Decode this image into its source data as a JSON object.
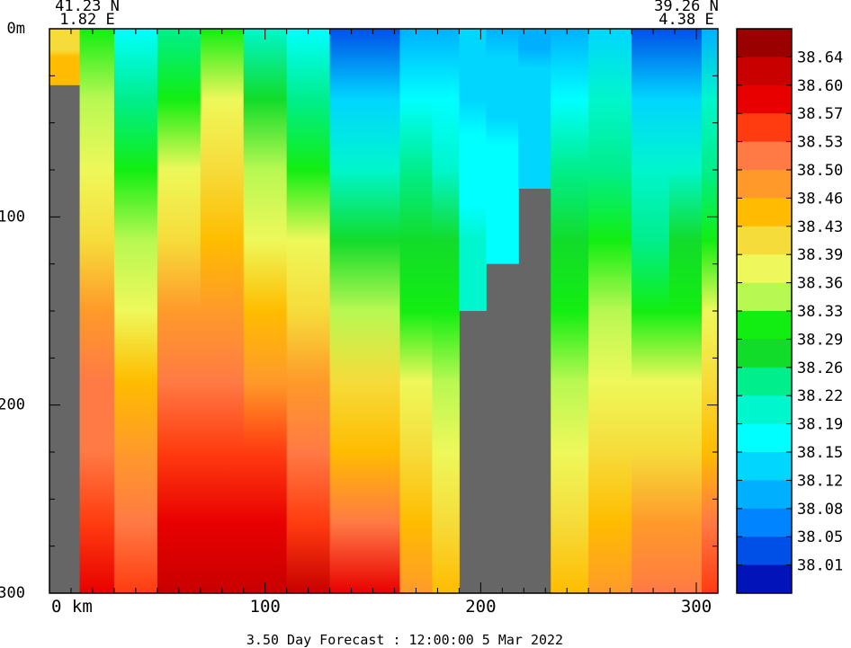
{
  "chart_data": {
    "type": "heatmap",
    "title": "3.50 Day Forecast : 12:00:00   5 Mar 2022",
    "start": {
      "lat": "41.23 N",
      "lon": "1.82 E"
    },
    "end": {
      "lat": "39.26 N",
      "lon": "4.38 E"
    },
    "x_unit": "km",
    "xlim": [
      0,
      310
    ],
    "ylim": [
      300,
      0
    ],
    "y_unit": "m",
    "x_ticks": [
      {
        "value": 0,
        "label": "0 km"
      },
      {
        "value": 100,
        "label": "100"
      },
      {
        "value": 200,
        "label": "200"
      },
      {
        "value": 300,
        "label": "300"
      }
    ],
    "y_ticks": [
      {
        "value": 0,
        "label": "0m"
      },
      {
        "value": 100,
        "label": "100"
      },
      {
        "value": 200,
        "label": "200"
      },
      {
        "value": 300,
        "label": "300"
      }
    ],
    "colorbar": {
      "labels": [
        "38.64",
        "38.60",
        "38.57",
        "38.53",
        "38.50",
        "38.46",
        "38.43",
        "38.39",
        "38.36",
        "38.33",
        "38.29",
        "38.26",
        "38.22",
        "38.19",
        "38.15",
        "38.12",
        "38.08",
        "38.05",
        "38.01"
      ],
      "colors": [
        "#9b0000",
        "#c80000",
        "#e80000",
        "#ff3c10",
        "#ff7a44",
        "#ff9a2a",
        "#ffbc00",
        "#f6dc3a",
        "#eef85a",
        "#b8f852",
        "#12ee12",
        "#12dc2a",
        "#00ee8c",
        "#00f6cc",
        "#00ffff",
        "#00d6ff",
        "#00b0ff",
        "#0084ff",
        "#0050e8",
        "#0014b8"
      ]
    },
    "salinity_profiles": [
      {
        "x": 8,
        "bottom": 30,
        "top_value": 38.4,
        "bottom_value": 38.46
      },
      {
        "x": 20,
        "bottom": 300,
        "top_value": 38.29,
        "bottom_value": 38.6
      },
      {
        "x": 40,
        "bottom": 300,
        "top_value": 38.17,
        "bottom_value": 38.56
      },
      {
        "x": 60,
        "bottom": 300,
        "top_value": 38.25,
        "bottom_value": 38.64
      },
      {
        "x": 80,
        "bottom": 300,
        "top_value": 38.3,
        "bottom_value": 38.64
      },
      {
        "x": 100,
        "bottom": 300,
        "top_value": 38.19,
        "bottom_value": 38.64
      },
      {
        "x": 120,
        "bottom": 300,
        "top_value": 38.16,
        "bottom_value": 38.61
      },
      {
        "x": 140,
        "bottom": 300,
        "top_value": 38.03,
        "bottom_value": 38.58
      },
      {
        "x": 155,
        "bottom": 300,
        "top_value": 38.01,
        "bottom_value": 38.58
      },
      {
        "x": 170,
        "bottom": 300,
        "top_value": 38.08,
        "bottom_value": 38.5
      },
      {
        "x": 185,
        "bottom": 300,
        "top_value": 38.1,
        "bottom_value": 38.45
      },
      {
        "x": 195,
        "bottom": 150,
        "top_value": 38.12,
        "bottom_value": 38.2
      },
      {
        "x": 210,
        "bottom": 125,
        "top_value": 38.11,
        "bottom_value": 38.18
      },
      {
        "x": 225,
        "bottom": 85,
        "top_value": 38.1,
        "bottom_value": 38.14
      },
      {
        "x": 240,
        "bottom": 300,
        "top_value": 38.1,
        "bottom_value": 38.46
      },
      {
        "x": 260,
        "bottom": 300,
        "top_value": 38.12,
        "bottom_value": 38.5
      },
      {
        "x": 280,
        "bottom": 300,
        "top_value": 38.02,
        "bottom_value": 38.52
      },
      {
        "x": 295,
        "bottom": 300,
        "top_value": 38.03,
        "bottom_value": 38.53
      },
      {
        "x": 310,
        "bottom": 300,
        "top_value": 38.1,
        "bottom_value": 38.56
      }
    ]
  }
}
